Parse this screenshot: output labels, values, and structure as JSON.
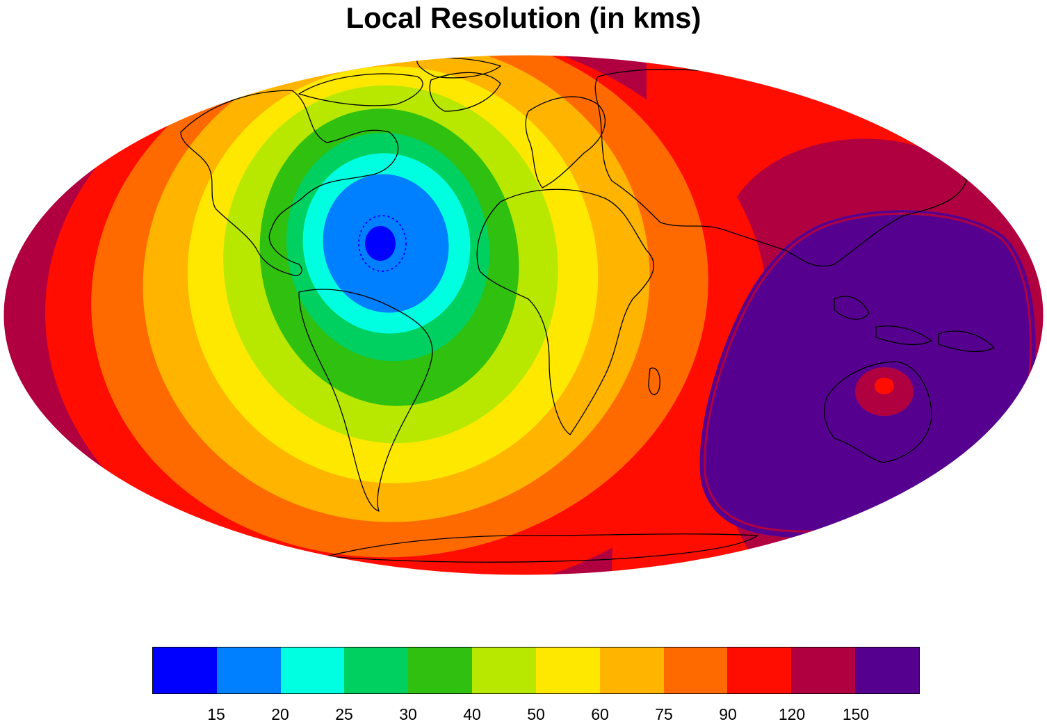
{
  "title": "Local Resolution (in kms)",
  "map": {
    "projection": "mollweide",
    "field": "local resolution",
    "units": "km",
    "coastlines": true,
    "fine_center": {
      "lon": -35,
      "lat": 20,
      "value_km": 15
    },
    "coarse_region": {
      "lon": 135,
      "lat": -15,
      "value_km": 150
    }
  },
  "legend": {
    "colors": [
      "#0000ff",
      "#0080ff",
      "#00ffe0",
      "#00d060",
      "#30c010",
      "#b8e800",
      "#ffe800",
      "#ffb400",
      "#ff6a00",
      "#ff0d00",
      "#b00040",
      "#560090"
    ],
    "labels": [
      "15",
      "20",
      "25",
      "30",
      "40",
      "50",
      "60",
      "75",
      "90",
      "120",
      "150"
    ]
  }
}
